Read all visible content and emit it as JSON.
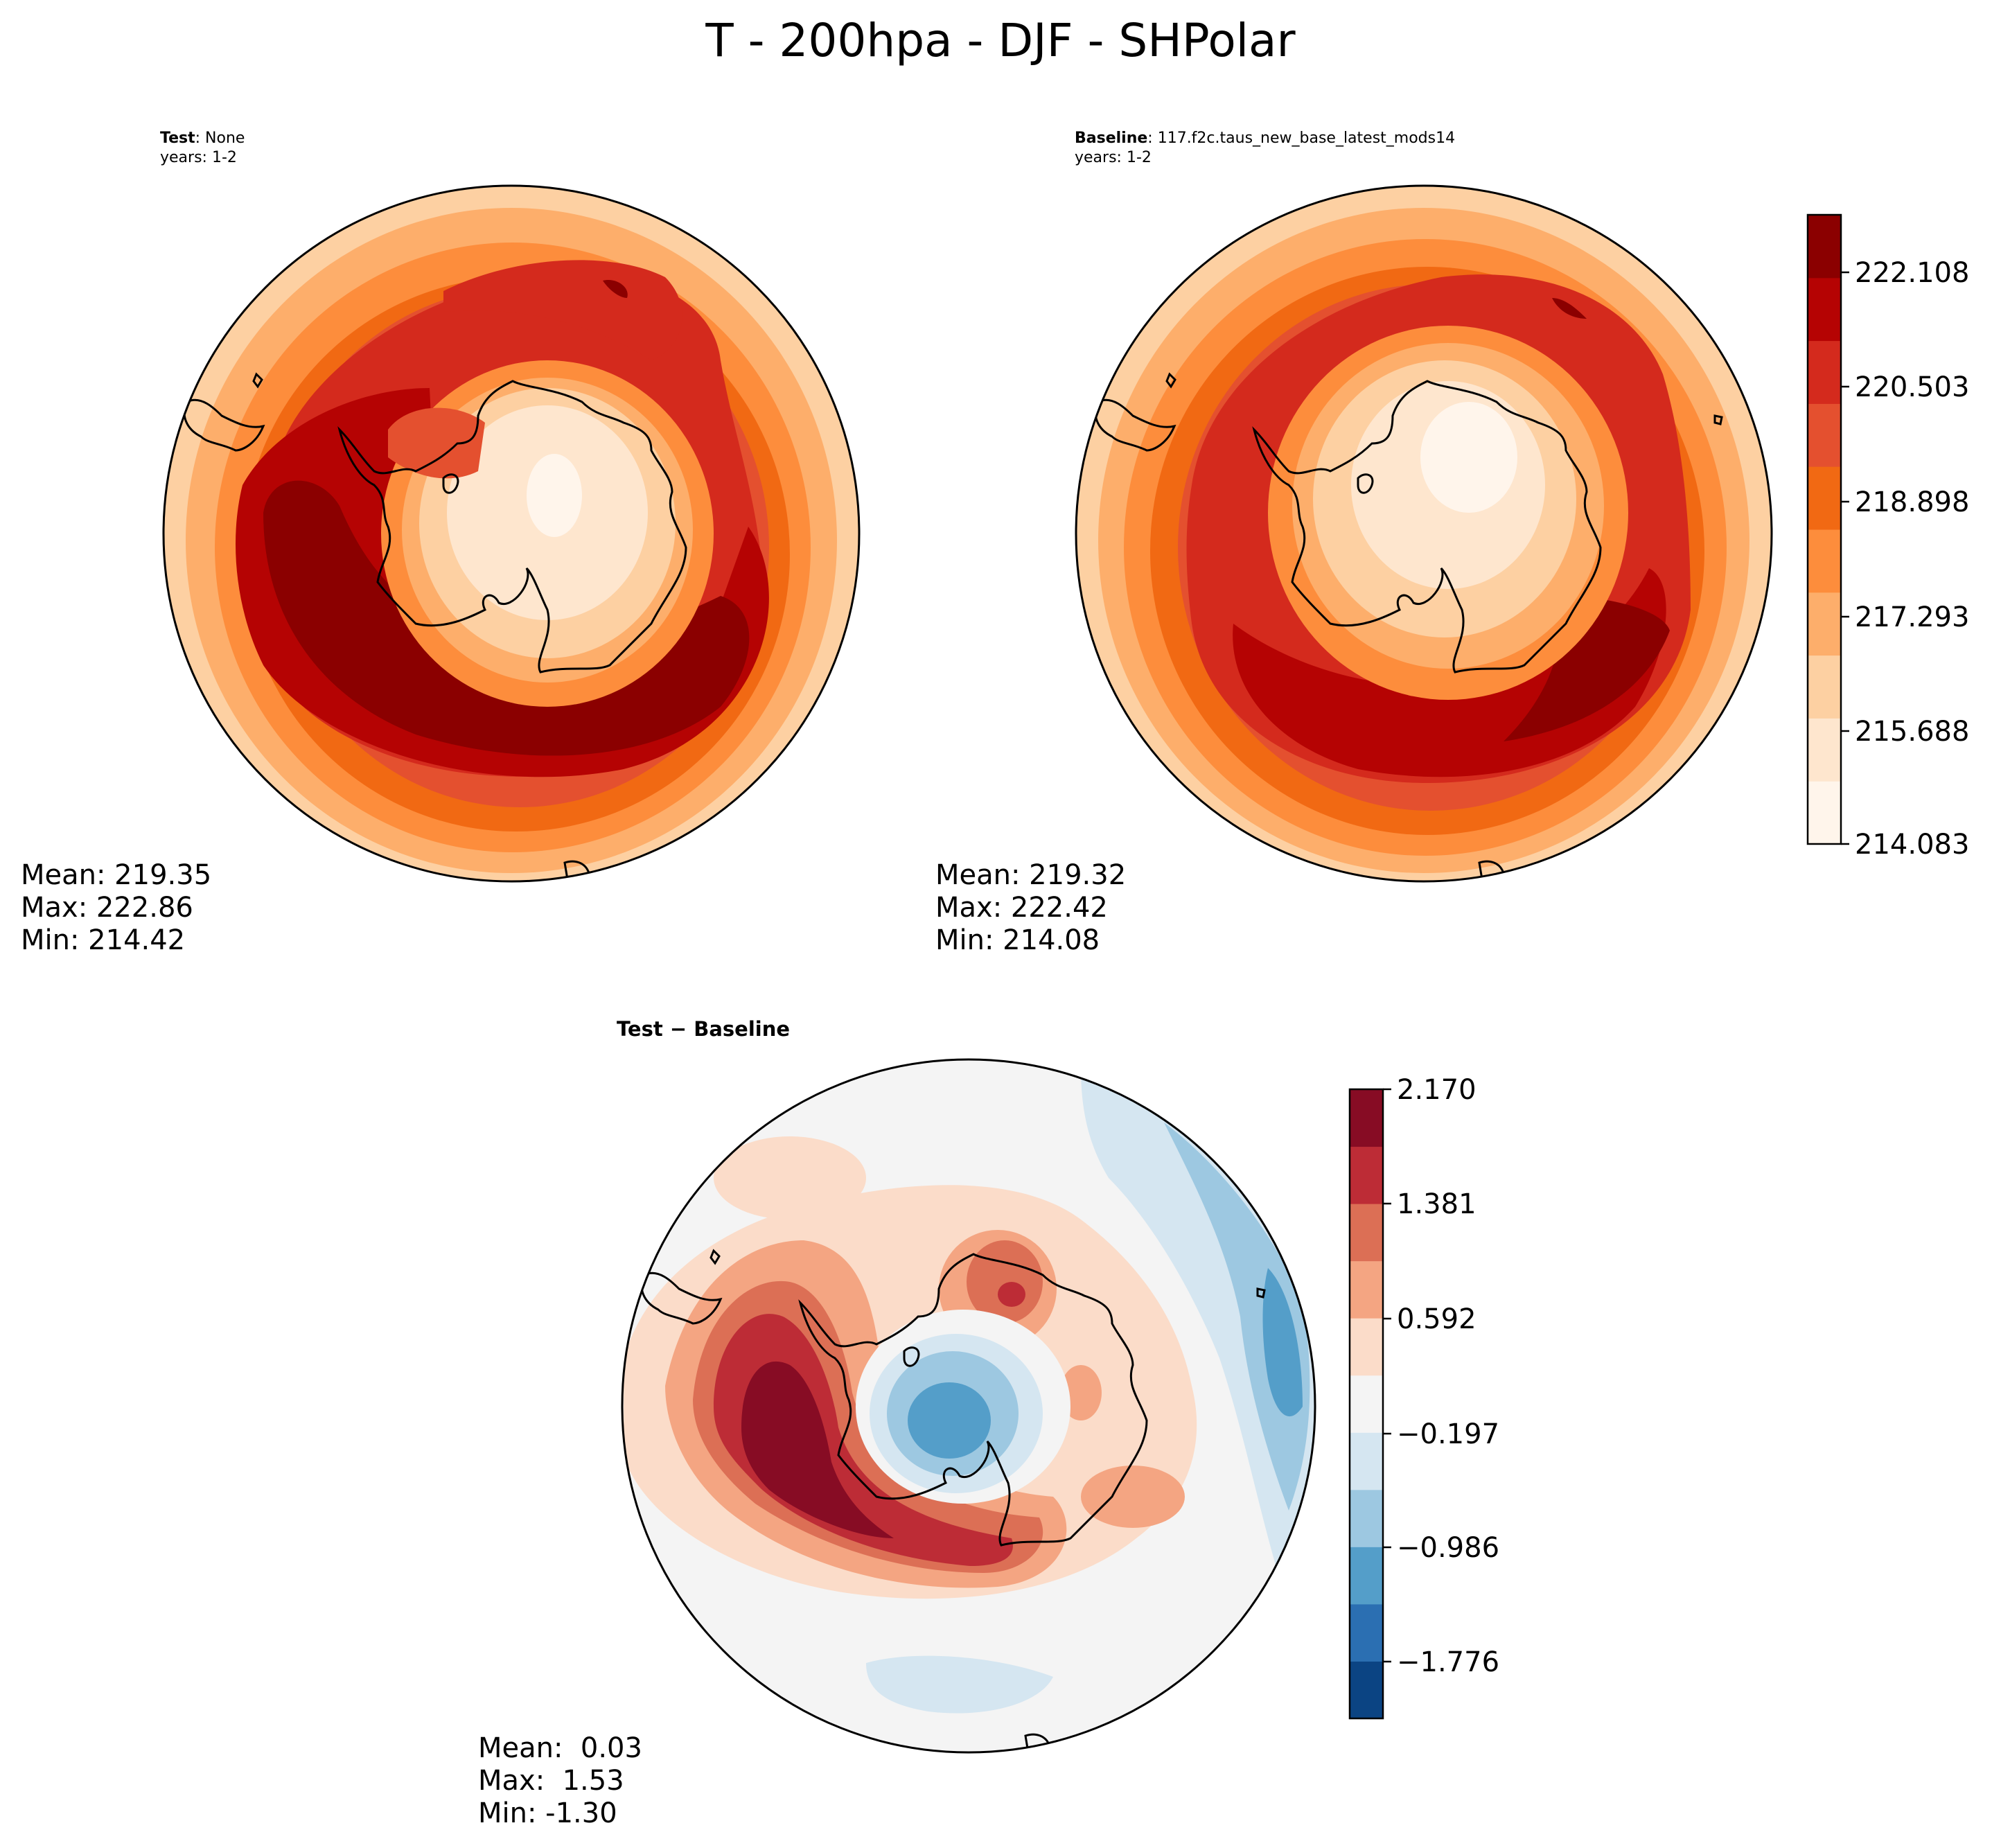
{
  "figure": {
    "title": "T - 200hpa - DJF - SHPolar"
  },
  "panels": {
    "test": {
      "label_bold": "Test",
      "label_value": ": None",
      "years": "years: 1-2",
      "stats": [
        "Mean: 219.35",
        "Max: 222.86",
        "Min: 214.42"
      ]
    },
    "baseline": {
      "label_bold": "Baseline",
      "label_value": ": 117.f2c.taus_new_base_latest_mods14",
      "years": "years: 1-2",
      "stats": [
        "Mean: 219.32",
        "Max: 222.42",
        "Min: 214.08"
      ]
    },
    "diff": {
      "title": "Test − Baseline",
      "stats": [
        "Mean:  0.03",
        "Max:  1.53",
        "Min: -1.30"
      ]
    }
  },
  "colorbars": {
    "temperature": {
      "colormap": "OrRd-like sequential",
      "colors": [
        "#fff5eb",
        "#fee6ce",
        "#fdd0a2",
        "#fdae6b",
        "#fd8d3c",
        "#f16913",
        "#e4502f",
        "#d42a1d",
        "#b50303",
        "#8b0000"
      ],
      "tick_labels": [
        "222.108",
        "220.503",
        "218.898",
        "217.293",
        "215.688",
        "214.083"
      ]
    },
    "difference": {
      "colormap": "RdBu_r diverging",
      "colors": [
        "#0b4483",
        "#2b6fb2",
        "#549ec9",
        "#9dc8e1",
        "#d5e6f1",
        "#f4f4f4",
        "#fbdcc9",
        "#f4a582",
        "#dc6f55",
        "#bd2c36",
        "#870c24"
      ],
      "tick_labels": [
        "2.170",
        "1.381",
        "0.592",
        "−0.197",
        "−0.986",
        "−1.776"
      ]
    }
  },
  "chart_data": {
    "type": "heatmap",
    "title": "T - 200hpa - DJF - SHPolar",
    "projection": "south polar stereographic",
    "maps": [
      {
        "name": "Test",
        "mean": 219.35,
        "max": 222.86,
        "min": 214.42
      },
      {
        "name": "Baseline",
        "mean": 219.32,
        "max": 222.42,
        "min": 214.08
      },
      {
        "name": "Test − Baseline",
        "mean": 0.03,
        "max": 1.53,
        "min": -1.3
      }
    ],
    "temperature_levels": [
      214.083,
      215.688,
      217.293,
      218.898,
      220.503,
      222.108
    ],
    "difference_levels": [
      -1.776,
      -0.986,
      -0.197,
      0.592,
      1.381,
      2.17
    ]
  }
}
